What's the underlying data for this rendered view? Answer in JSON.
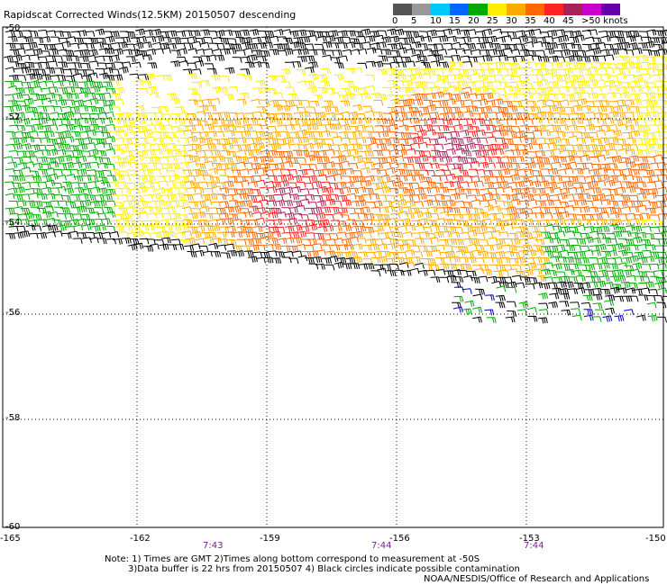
{
  "title": "Rapidscat Corrected Winds(12.5KM) 20150507 descending",
  "legend": {
    "labels": [
      "0",
      "5",
      "10",
      "15",
      "20",
      "25",
      "30",
      "35",
      "40",
      "45",
      ">50 knots"
    ],
    "colors": [
      "#555555",
      "#999999",
      "#00c8ff",
      "#0066ff",
      "#00aa00",
      "#ffee00",
      "#ffaa00",
      "#ff6600",
      "#ff2222",
      "#aa2255",
      "#cc00cc",
      "#6600aa"
    ]
  },
  "lat_labels": [
    "-50",
    "-52",
    "-54",
    "-56",
    "-58",
    "-60"
  ],
  "lon_labels": [
    "-165",
    "-162",
    "-159",
    "-156",
    "-153",
    "-150"
  ],
  "times": [
    "7:43",
    "7:44",
    "7:44"
  ],
  "notes": {
    "line1": "Note: 1) Times are GMT 2)Times along bottom correspond to measurement at -50S",
    "line2": "3)Data buffer is 22 hrs from 20150507 4) Black circles indicate possible contamination",
    "line3": "NOAA/NESDIS/Office of Research and Applications"
  },
  "colors": {
    "calm": "#000000",
    "light": "#00aa00",
    "moderate": "#ffee00",
    "fresh": "#ffaa00",
    "strong": "#ff6600",
    "gale": "#ff2222",
    "storm": "#aa2255",
    "slow": "#0000cc",
    "grid": "#000000"
  }
}
